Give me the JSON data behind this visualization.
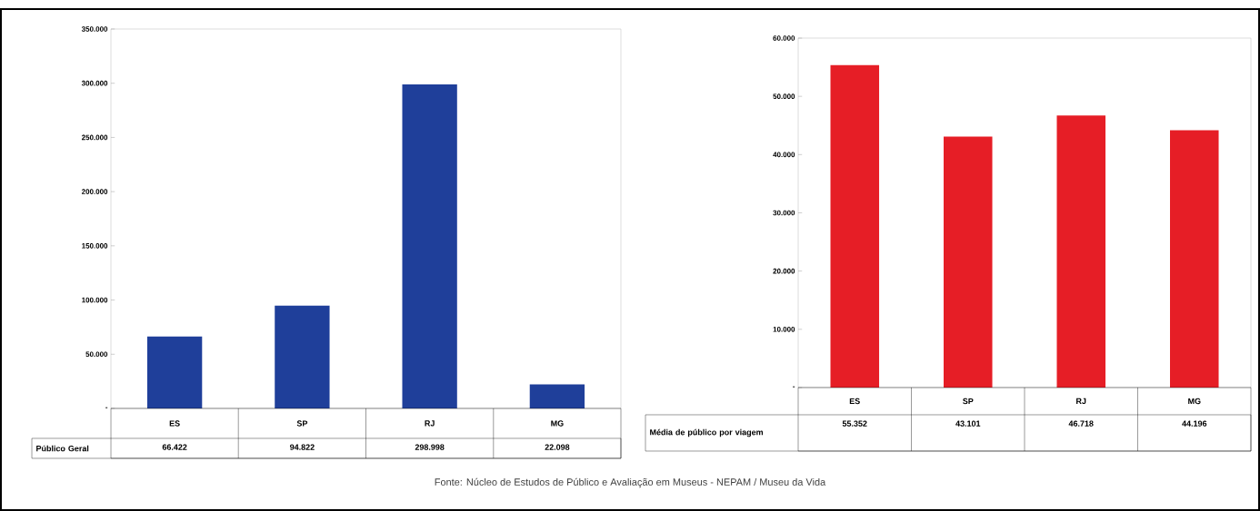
{
  "chart_data": [
    {
      "type": "bar",
      "categories": [
        "ES",
        "SP",
        "RJ",
        "MG"
      ],
      "series": [
        {
          "name": "Público Geral",
          "color": "#1f3f9a",
          "values": [
            66422,
            94822,
            298998,
            22098
          ],
          "value_labels": [
            "66.422",
            "94.822",
            "298.998",
            "22.098"
          ]
        }
      ],
      "ylim": [
        0,
        350000
      ],
      "yticks": [
        {
          "value": 0,
          "label": "-"
        },
        {
          "value": 50000,
          "label": "50.000"
        },
        {
          "value": 100000,
          "label": "100.000"
        },
        {
          "value": 150000,
          "label": "150.000"
        },
        {
          "value": 200000,
          "label": "200.000"
        },
        {
          "value": 250000,
          "label": "250.000"
        },
        {
          "value": 300000,
          "label": "300.000"
        },
        {
          "value": 350000,
          "label": "350.000"
        }
      ],
      "annotations": [
        "Fonte: Núcleo de Estudos de Público e Avaliação em Museus - NEPAM / Museu da Vida"
      ]
    },
    {
      "type": "bar",
      "categories": [
        "ES",
        "SP",
        "RJ",
        "MG"
      ],
      "series": [
        {
          "name": "Média de público por viagem",
          "color": "#e61e26",
          "values": [
            55352,
            43101,
            46718,
            44196
          ],
          "value_labels": [
            "55.352",
            "43.101",
            "46.718",
            "44.196"
          ]
        }
      ],
      "ylim": [
        0,
        60000
      ],
      "yticks": [
        {
          "value": 0,
          "label": "-"
        },
        {
          "value": 10000,
          "label": "10.000"
        },
        {
          "value": 20000,
          "label": "20.000"
        },
        {
          "value": 30000,
          "label": "30.000"
        },
        {
          "value": 40000,
          "label": "40.000"
        },
        {
          "value": 50000,
          "label": "50.000"
        },
        {
          "value": 60000,
          "label": "60.000"
        }
      ]
    }
  ]
}
